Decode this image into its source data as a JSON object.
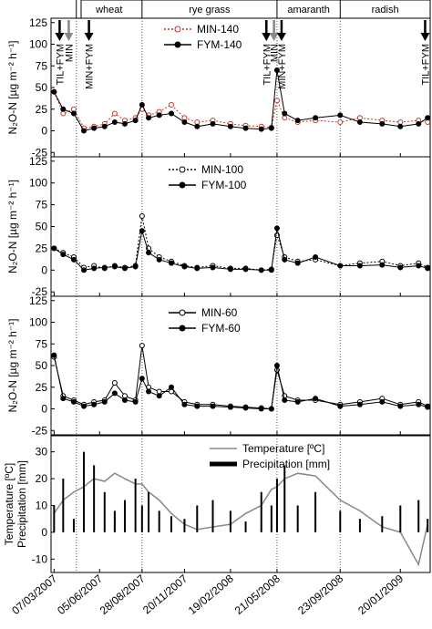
{
  "chart_data": [
    {
      "type": "line",
      "ylabel": "N₂O-N [µg m⁻² h⁻¹]",
      "ylim": [
        -30,
        130
      ],
      "yticks": [
        -25,
        0,
        25,
        50,
        75,
        100,
        125
      ],
      "xlim": [
        "01/03/2007",
        "20/03/2009"
      ],
      "crops": [
        {
          "label": "wheat",
          "start": "20/04/2007",
          "end": "28/08/2007"
        },
        {
          "label": "rye grass",
          "start": "28/08/2007",
          "end": "21/05/2008"
        },
        {
          "label": "amaranth",
          "start": "21/05/2008",
          "end": "23/09/2008"
        },
        {
          "label": "radish",
          "start": "23/09/2008",
          "end": "20/03/2009"
        }
      ],
      "annotations": [
        {
          "x": "18/03/2007",
          "label": "TIL+FYM",
          "color": "#000000"
        },
        {
          "x": "05/04/2007",
          "label": "MIN",
          "color": "#888888"
        },
        {
          "x": "15/05/2007",
          "label": "MIN+FYM",
          "color": "#000000"
        },
        {
          "x": "30/04/2008",
          "label": "TIL+FYM",
          "color": "#000000"
        },
        {
          "x": "15/05/2008",
          "label": "MIN",
          "color": "#888888"
        },
        {
          "x": "30/05/2008",
          "label": "MIN+FYM",
          "color": "#000000"
        },
        {
          "x": "10/03/2009",
          "label": "TIL+FYM",
          "color": "#000000"
        }
      ],
      "x": [
        "07/03/2007",
        "25/03/2007",
        "15/04/2007",
        "05/05/2007",
        "25/05/2007",
        "15/06/2007",
        "05/07/2007",
        "25/07/2007",
        "15/08/2007",
        "28/08/2007",
        "10/09/2007",
        "01/10/2007",
        "25/10/2007",
        "20/11/2007",
        "15/12/2007",
        "15/01/2008",
        "19/02/2008",
        "20/03/2008",
        "20/04/2008",
        "10/05/2008",
        "21/05/2008",
        "05/06/2008",
        "01/07/2008",
        "05/08/2008",
        "23/09/2008",
        "01/11/2008",
        "15/12/2008",
        "20/01/2009",
        "25/02/2009",
        "15/03/2009"
      ],
      "series": [
        {
          "name": "MIN-140",
          "color": "#c0392b",
          "marker": "open",
          "dash": true,
          "values": [
            45,
            20,
            25,
            3,
            5,
            8,
            20,
            12,
            15,
            25,
            18,
            22,
            30,
            15,
            10,
            12,
            8,
            6,
            5,
            4,
            35,
            15,
            10,
            12,
            10,
            15,
            12,
            10,
            12,
            10
          ]
        },
        {
          "name": "FYM-140",
          "color": "#000000",
          "marker": "filled",
          "dash": false,
          "values": [
            45,
            25,
            20,
            0,
            3,
            5,
            10,
            8,
            12,
            30,
            15,
            18,
            20,
            10,
            5,
            8,
            5,
            3,
            2,
            3,
            70,
            20,
            12,
            15,
            18,
            10,
            8,
            5,
            8,
            15
          ]
        }
      ]
    },
    {
      "type": "line",
      "ylabel": "N₂O-N [µg m⁻² h⁻¹]",
      "ylim": [
        -30,
        130
      ],
      "yticks": [
        -25,
        0,
        25,
        50,
        75,
        100,
        125
      ],
      "xlim": [
        "01/03/2007",
        "20/03/2009"
      ],
      "x": [
        "07/03/2007",
        "25/03/2007",
        "15/04/2007",
        "05/05/2007",
        "25/05/2007",
        "15/06/2007",
        "05/07/2007",
        "25/07/2007",
        "15/08/2007",
        "28/08/2007",
        "10/09/2007",
        "01/10/2007",
        "25/10/2007",
        "20/11/2007",
        "15/12/2007",
        "15/01/2008",
        "19/02/2008",
        "20/03/2008",
        "20/04/2008",
        "10/05/2008",
        "21/05/2008",
        "05/06/2008",
        "01/07/2008",
        "05/08/2008",
        "23/09/2008",
        "01/11/2008",
        "15/12/2008",
        "20/01/2009",
        "25/02/2009",
        "15/03/2009"
      ],
      "series": [
        {
          "name": "MIN-100",
          "color": "#000000",
          "marker": "open",
          "dash": true,
          "values": [
            25,
            20,
            15,
            3,
            5,
            2,
            5,
            3,
            5,
            62,
            25,
            15,
            10,
            5,
            3,
            5,
            2,
            2,
            0,
            1,
            40,
            15,
            10,
            12,
            5,
            8,
            10,
            5,
            8,
            3
          ]
        },
        {
          "name": "FYM-100",
          "color": "#000000",
          "marker": "filled",
          "dash": false,
          "values": [
            25,
            18,
            12,
            0,
            2,
            3,
            4,
            2,
            4,
            45,
            20,
            12,
            8,
            4,
            2,
            3,
            1,
            1,
            0,
            0,
            48,
            12,
            8,
            15,
            5,
            5,
            6,
            3,
            5,
            2
          ]
        }
      ]
    },
    {
      "type": "line",
      "ylabel": "N₂O-N [µg m⁻² h⁻¹]",
      "ylim": [
        -30,
        130
      ],
      "yticks": [
        -25,
        0,
        25,
        50,
        75,
        100,
        125
      ],
      "xlim": [
        "01/03/2007",
        "20/03/2009"
      ],
      "x": [
        "07/03/2007",
        "25/03/2007",
        "15/04/2007",
        "05/05/2007",
        "25/05/2007",
        "15/06/2007",
        "05/07/2007",
        "25/07/2007",
        "15/08/2007",
        "28/08/2007",
        "10/09/2007",
        "01/10/2007",
        "25/10/2007",
        "20/11/2007",
        "15/12/2007",
        "15/01/2008",
        "19/02/2008",
        "20/03/2008",
        "20/04/2008",
        "10/05/2008",
        "21/05/2008",
        "05/06/2008",
        "01/07/2008",
        "05/08/2008",
        "23/09/2008",
        "01/11/2008",
        "15/12/2008",
        "20/01/2009",
        "25/02/2009",
        "15/03/2009"
      ],
      "series": [
        {
          "name": "MIN-60",
          "color": "#000000",
          "marker": "open",
          "dash": false,
          "values": [
            60,
            15,
            10,
            5,
            8,
            10,
            30,
            15,
            10,
            73,
            25,
            20,
            20,
            8,
            5,
            5,
            3,
            2,
            1,
            0,
            45,
            15,
            10,
            10,
            5,
            8,
            12,
            5,
            8,
            3
          ]
        },
        {
          "name": "FYM-60",
          "color": "#000000",
          "marker": "filled",
          "dash": false,
          "values": [
            62,
            12,
            8,
            3,
            5,
            8,
            18,
            10,
            8,
            35,
            20,
            15,
            25,
            5,
            3,
            3,
            2,
            1,
            0,
            0,
            50,
            10,
            8,
            12,
            3,
            5,
            8,
            3,
            5,
            2
          ]
        }
      ]
    },
    {
      "type": "combo",
      "ylabel": [
        "Temperature [ºC]",
        "Precipitation [mm]"
      ],
      "ylim": [
        -15,
        36
      ],
      "yticks": [
        -10,
        0,
        10,
        20,
        30
      ],
      "xlim": [
        "01/03/2007",
        "20/03/2009"
      ],
      "xticks": [
        "07/03/2007",
        "05/06/2007",
        "28/08/2007",
        "20/11/2007",
        "19/02/2008",
        "21/05/2008",
        "23/09/2008",
        "20/01/2009"
      ],
      "x": [
        "07/03/2007",
        "25/03/2007",
        "15/04/2007",
        "05/05/2007",
        "25/05/2007",
        "15/06/2007",
        "05/07/2007",
        "25/07/2007",
        "15/08/2007",
        "28/08/2007",
        "10/09/2007",
        "01/10/2007",
        "25/10/2007",
        "20/11/2007",
        "15/12/2007",
        "15/01/2008",
        "19/02/2008",
        "20/03/2008",
        "20/04/2008",
        "10/05/2008",
        "21/05/2008",
        "05/06/2008",
        "01/07/2008",
        "05/08/2008",
        "23/09/2008",
        "01/11/2008",
        "15/12/2008",
        "20/01/2009",
        "25/02/2009",
        "15/03/2009"
      ],
      "series": [
        {
          "name": "Temperature [ºC]",
          "color": "#888888",
          "kind": "line",
          "values": [
            7,
            12,
            15,
            17,
            20,
            19,
            22,
            20,
            18,
            18,
            15,
            12,
            7,
            3,
            1,
            2,
            3,
            7,
            10,
            16,
            17,
            20,
            22,
            21,
            12,
            8,
            2,
            0,
            -12,
            3
          ]
        },
        {
          "name": "Precipitation [mm]",
          "color": "#000000",
          "kind": "bar",
          "values": [
            10,
            20,
            5,
            30,
            25,
            15,
            8,
            12,
            20,
            10,
            15,
            8,
            6,
            5,
            10,
            12,
            8,
            4,
            15,
            10,
            20,
            25,
            10,
            15,
            8,
            5,
            6,
            10,
            12,
            5
          ]
        }
      ]
    }
  ]
}
